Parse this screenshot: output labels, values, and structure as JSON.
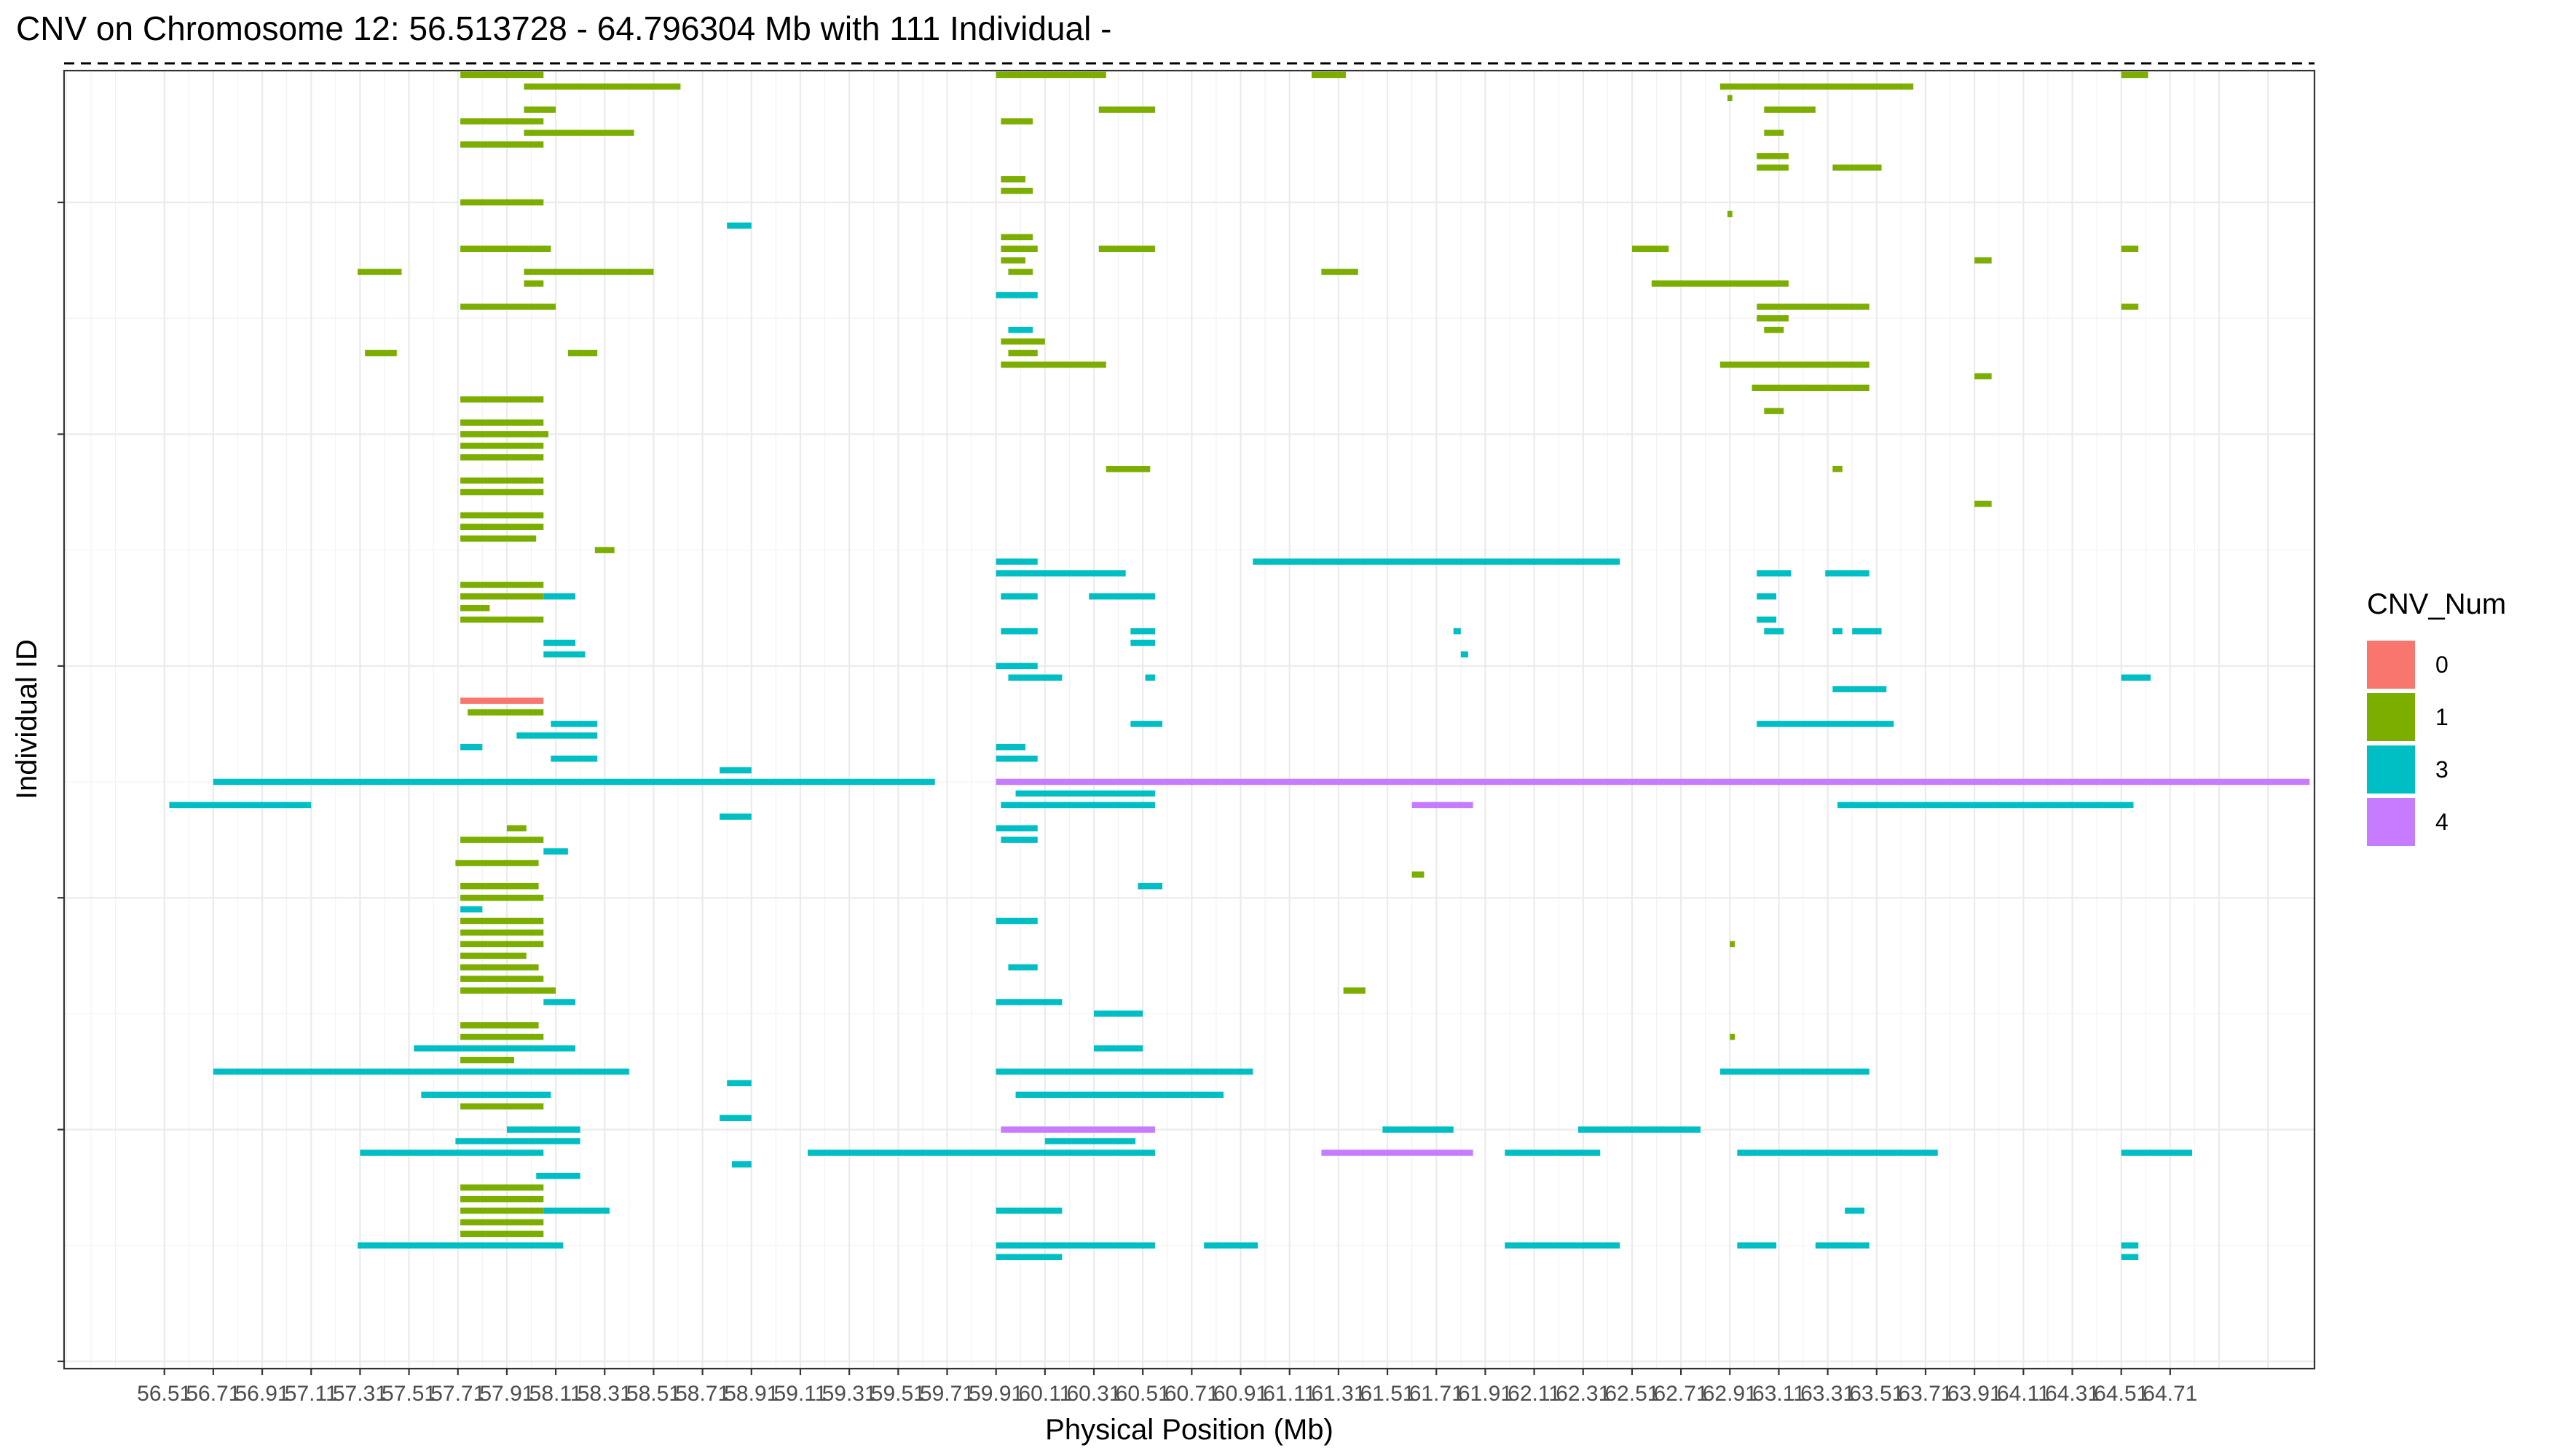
{
  "chart_data": {
    "type": "segment",
    "title": "CNV on Chromosome 12: 56.513728 - 64.796304 Mb with 111 Individual -",
    "xlabel": "Physical Position (Mb)",
    "ylabel": "Individual ID",
    "x_tick_labels": [
      "56.51",
      "56.71",
      "56.91",
      "57.11",
      "57.31",
      "57.51",
      "57.71",
      "57.91",
      "58.11",
      "58.31",
      "58.51",
      "58.71",
      "58.91",
      "59.11",
      "59.31",
      "59.51",
      "59.71",
      "59.91",
      "60.11",
      "60.31",
      "60.51",
      "60.71",
      "60.91",
      "61.11",
      "61.31",
      "61.51",
      "61.71",
      "61.91",
      "62.11",
      "62.31",
      "62.51",
      "62.71",
      "62.91",
      "63.11",
      "63.31",
      "63.51",
      "63.71",
      "63.91",
      "64.11",
      "64.31",
      "64.51",
      "64.71"
    ],
    "xlim": [
      56.1,
      65.3
    ],
    "ylim": [
      0,
      112
    ],
    "y_minor_ticks": [
      0,
      20,
      40,
      60,
      80,
      100
    ],
    "reference_line_y": 112,
    "grid": true,
    "legend": {
      "title": "CNV_Num",
      "position": "right",
      "entries": [
        {
          "label": "0",
          "color": "#F8766D"
        },
        {
          "label": "1",
          "color": "#7CAE00"
        },
        {
          "label": "3",
          "color": "#00BFC4"
        },
        {
          "label": "4",
          "color": "#C77CFF"
        }
      ]
    },
    "segments": [
      {
        "row": 111,
        "x0": 57.72,
        "x1": 58.06,
        "cnv": 1
      },
      {
        "row": 111,
        "x0": 59.91,
        "x1": 60.36,
        "cnv": 1
      },
      {
        "row": 111,
        "x0": 61.2,
        "x1": 61.34,
        "cnv": 1
      },
      {
        "row": 111,
        "x0": 64.51,
        "x1": 64.62,
        "cnv": 1
      },
      {
        "row": 110,
        "x0": 57.98,
        "x1": 58.62,
        "cnv": 1
      },
      {
        "row": 110,
        "x0": 62.87,
        "x1": 63.66,
        "cnv": 1
      },
      {
        "row": 109,
        "x0": 62.9,
        "x1": 62.92,
        "cnv": 1
      },
      {
        "row": 108,
        "x0": 57.98,
        "x1": 58.11,
        "cnv": 1
      },
      {
        "row": 108,
        "x0": 60.33,
        "x1": 60.56,
        "cnv": 1
      },
      {
        "row": 108,
        "x0": 63.05,
        "x1": 63.26,
        "cnv": 1
      },
      {
        "row": 107,
        "x0": 57.72,
        "x1": 58.06,
        "cnv": 1
      },
      {
        "row": 107,
        "x0": 59.93,
        "x1": 60.06,
        "cnv": 1
      },
      {
        "row": 106,
        "x0": 57.98,
        "x1": 58.43,
        "cnv": 1
      },
      {
        "row": 106,
        "x0": 63.05,
        "x1": 63.13,
        "cnv": 1
      },
      {
        "row": 105,
        "x0": 57.72,
        "x1": 58.06,
        "cnv": 1
      },
      {
        "row": 104,
        "x0": 63.02,
        "x1": 63.15,
        "cnv": 1
      },
      {
        "row": 103,
        "x0": 63.02,
        "x1": 63.15,
        "cnv": 1
      },
      {
        "row": 103,
        "x0": 63.33,
        "x1": 63.53,
        "cnv": 1
      },
      {
        "row": 102,
        "x0": 59.93,
        "x1": 60.03,
        "cnv": 1
      },
      {
        "row": 101,
        "x0": 59.93,
        "x1": 60.06,
        "cnv": 1
      },
      {
        "row": 100,
        "x0": 57.72,
        "x1": 58.06,
        "cnv": 1
      },
      {
        "row": 99,
        "x0": 62.9,
        "x1": 62.92,
        "cnv": 1
      },
      {
        "row": 98,
        "x0": 58.81,
        "x1": 58.91,
        "cnv": 3
      },
      {
        "row": 97,
        "x0": 59.93,
        "x1": 60.06,
        "cnv": 1
      },
      {
        "row": 96,
        "x0": 57.72,
        "x1": 58.09,
        "cnv": 1
      },
      {
        "row": 96,
        "x0": 59.93,
        "x1": 60.08,
        "cnv": 1
      },
      {
        "row": 96,
        "x0": 60.33,
        "x1": 60.56,
        "cnv": 1
      },
      {
        "row": 96,
        "x0": 62.51,
        "x1": 62.66,
        "cnv": 1
      },
      {
        "row": 96,
        "x0": 64.51,
        "x1": 64.58,
        "cnv": 1
      },
      {
        "row": 95,
        "x0": 59.93,
        "x1": 60.03,
        "cnv": 1
      },
      {
        "row": 95,
        "x0": 63.91,
        "x1": 63.98,
        "cnv": 1
      },
      {
        "row": 94,
        "x0": 57.3,
        "x1": 57.48,
        "cnv": 1
      },
      {
        "row": 94,
        "x0": 57.98,
        "x1": 58.51,
        "cnv": 1
      },
      {
        "row": 94,
        "x0": 59.96,
        "x1": 60.06,
        "cnv": 1
      },
      {
        "row": 94,
        "x0": 61.24,
        "x1": 61.39,
        "cnv": 1
      },
      {
        "row": 93,
        "x0": 57.98,
        "x1": 58.06,
        "cnv": 1
      },
      {
        "row": 93,
        "x0": 62.59,
        "x1": 63.15,
        "cnv": 1
      },
      {
        "row": 92,
        "x0": 59.91,
        "x1": 60.08,
        "cnv": 3
      },
      {
        "row": 91,
        "x0": 57.72,
        "x1": 58.11,
        "cnv": 1
      },
      {
        "row": 91,
        "x0": 63.02,
        "x1": 63.48,
        "cnv": 1
      },
      {
        "row": 91,
        "x0": 64.51,
        "x1": 64.58,
        "cnv": 1
      },
      {
        "row": 90,
        "x0": 63.02,
        "x1": 63.15,
        "cnv": 1
      },
      {
        "row": 89,
        "x0": 59.96,
        "x1": 60.06,
        "cnv": 3
      },
      {
        "row": 89,
        "x0": 63.05,
        "x1": 63.13,
        "cnv": 1
      },
      {
        "row": 88,
        "x0": 59.93,
        "x1": 60.11,
        "cnv": 1
      },
      {
        "row": 87,
        "x0": 57.33,
        "x1": 57.46,
        "cnv": 1
      },
      {
        "row": 87,
        "x0": 58.16,
        "x1": 58.28,
        "cnv": 1
      },
      {
        "row": 87,
        "x0": 59.96,
        "x1": 60.08,
        "cnv": 1
      },
      {
        "row": 86,
        "x0": 59.93,
        "x1": 60.36,
        "cnv": 1
      },
      {
        "row": 86,
        "x0": 62.87,
        "x1": 63.48,
        "cnv": 1
      },
      {
        "row": 85,
        "x0": 63.91,
        "x1": 63.98,
        "cnv": 1
      },
      {
        "row": 84,
        "x0": 63.0,
        "x1": 63.48,
        "cnv": 1
      },
      {
        "row": 83,
        "x0": 57.72,
        "x1": 58.06,
        "cnv": 1
      },
      {
        "row": 82,
        "x0": 63.05,
        "x1": 63.13,
        "cnv": 1
      },
      {
        "row": 81,
        "x0": 57.72,
        "x1": 58.06,
        "cnv": 1
      },
      {
        "row": 80,
        "x0": 57.72,
        "x1": 58.08,
        "cnv": 1
      },
      {
        "row": 79,
        "x0": 57.72,
        "x1": 58.06,
        "cnv": 1
      },
      {
        "row": 78,
        "x0": 57.72,
        "x1": 58.06,
        "cnv": 1
      },
      {
        "row": 77,
        "x0": 60.36,
        "x1": 60.54,
        "cnv": 1
      },
      {
        "row": 77,
        "x0": 63.33,
        "x1": 63.37,
        "cnv": 1
      },
      {
        "row": 76,
        "x0": 57.72,
        "x1": 58.06,
        "cnv": 1
      },
      {
        "row": 75,
        "x0": 57.72,
        "x1": 58.06,
        "cnv": 1
      },
      {
        "row": 74,
        "x0": 63.91,
        "x1": 63.98,
        "cnv": 1
      },
      {
        "row": 73,
        "x0": 57.72,
        "x1": 58.06,
        "cnv": 1
      },
      {
        "row": 72,
        "x0": 57.72,
        "x1": 58.06,
        "cnv": 1
      },
      {
        "row": 71,
        "x0": 57.72,
        "x1": 58.03,
        "cnv": 1
      },
      {
        "row": 70,
        "x0": 58.27,
        "x1": 58.35,
        "cnv": 1
      },
      {
        "row": 69,
        "x0": 59.91,
        "x1": 60.08,
        "cnv": 3
      },
      {
        "row": 69,
        "x0": 60.96,
        "x1": 62.46,
        "cnv": 3
      },
      {
        "row": 68,
        "x0": 59.91,
        "x1": 60.44,
        "cnv": 3
      },
      {
        "row": 68,
        "x0": 63.02,
        "x1": 63.16,
        "cnv": 3
      },
      {
        "row": 68,
        "x0": 63.3,
        "x1": 63.48,
        "cnv": 3
      },
      {
        "row": 67,
        "x0": 57.72,
        "x1": 58.06,
        "cnv": 1
      },
      {
        "row": 66,
        "x0": 57.72,
        "x1": 58.06,
        "cnv": 1
      },
      {
        "row": 66,
        "x0": 58.06,
        "x1": 58.19,
        "cnv": 3
      },
      {
        "row": 66,
        "x0": 59.93,
        "x1": 60.08,
        "cnv": 3
      },
      {
        "row": 66,
        "x0": 60.29,
        "x1": 60.56,
        "cnv": 3
      },
      {
        "row": 66,
        "x0": 63.02,
        "x1": 63.1,
        "cnv": 3
      },
      {
        "row": 65,
        "x0": 57.72,
        "x1": 57.84,
        "cnv": 1
      },
      {
        "row": 64,
        "x0": 57.72,
        "x1": 58.06,
        "cnv": 1
      },
      {
        "row": 64,
        "x0": 63.02,
        "x1": 63.1,
        "cnv": 3
      },
      {
        "row": 63,
        "x0": 59.93,
        "x1": 60.08,
        "cnv": 3
      },
      {
        "row": 63,
        "x0": 60.46,
        "x1": 60.56,
        "cnv": 3
      },
      {
        "row": 63,
        "x0": 61.78,
        "x1": 61.81,
        "cnv": 3
      },
      {
        "row": 63,
        "x0": 63.05,
        "x1": 63.13,
        "cnv": 3
      },
      {
        "row": 63,
        "x0": 63.33,
        "x1": 63.37,
        "cnv": 3
      },
      {
        "row": 63,
        "x0": 63.41,
        "x1": 63.53,
        "cnv": 3
      },
      {
        "row": 62,
        "x0": 58.06,
        "x1": 58.19,
        "cnv": 3
      },
      {
        "row": 62,
        "x0": 60.46,
        "x1": 60.56,
        "cnv": 3
      },
      {
        "row": 61,
        "x0": 58.06,
        "x1": 58.23,
        "cnv": 3
      },
      {
        "row": 61,
        "x0": 61.81,
        "x1": 61.84,
        "cnv": 3
      },
      {
        "row": 60,
        "x0": 59.91,
        "x1": 60.08,
        "cnv": 3
      },
      {
        "row": 59,
        "x0": 59.96,
        "x1": 60.18,
        "cnv": 3
      },
      {
        "row": 59,
        "x0": 60.52,
        "x1": 60.56,
        "cnv": 3
      },
      {
        "row": 59,
        "x0": 64.51,
        "x1": 64.63,
        "cnv": 3
      },
      {
        "row": 58,
        "x0": 63.33,
        "x1": 63.55,
        "cnv": 3
      },
      {
        "row": 57,
        "x0": 57.72,
        "x1": 58.06,
        "cnv": 0
      },
      {
        "row": 56,
        "x0": 57.75,
        "x1": 58.06,
        "cnv": 1
      },
      {
        "row": 55,
        "x0": 58.09,
        "x1": 58.28,
        "cnv": 3
      },
      {
        "row": 55,
        "x0": 60.46,
        "x1": 60.59,
        "cnv": 3
      },
      {
        "row": 55,
        "x0": 63.02,
        "x1": 63.58,
        "cnv": 3
      },
      {
        "row": 54,
        "x0": 57.95,
        "x1": 58.28,
        "cnv": 3
      },
      {
        "row": 53,
        "x0": 57.72,
        "x1": 57.81,
        "cnv": 3
      },
      {
        "row": 53,
        "x0": 59.91,
        "x1": 60.03,
        "cnv": 3
      },
      {
        "row": 52,
        "x0": 58.09,
        "x1": 58.28,
        "cnv": 3
      },
      {
        "row": 52,
        "x0": 59.91,
        "x1": 60.08,
        "cnv": 3
      },
      {
        "row": 51,
        "x0": 58.78,
        "x1": 58.91,
        "cnv": 3
      },
      {
        "row": 50,
        "x0": 56.71,
        "x1": 59.66,
        "cnv": 3
      },
      {
        "row": 50,
        "x0": 59.91,
        "x1": 65.28,
        "cnv": 4
      },
      {
        "row": 49,
        "x0": 59.99,
        "x1": 60.56,
        "cnv": 3
      },
      {
        "row": 48,
        "x0": 56.53,
        "x1": 57.11,
        "cnv": 3
      },
      {
        "row": 48,
        "x0": 59.93,
        "x1": 60.56,
        "cnv": 3
      },
      {
        "row": 48,
        "x0": 61.61,
        "x1": 61.86,
        "cnv": 4
      },
      {
        "row": 48,
        "x0": 63.35,
        "x1": 64.56,
        "cnv": 3
      },
      {
        "row": 47,
        "x0": 58.78,
        "x1": 58.91,
        "cnv": 3
      },
      {
        "row": 46,
        "x0": 57.91,
        "x1": 57.99,
        "cnv": 1
      },
      {
        "row": 46,
        "x0": 59.91,
        "x1": 60.08,
        "cnv": 3
      },
      {
        "row": 45,
        "x0": 57.72,
        "x1": 58.06,
        "cnv": 1
      },
      {
        "row": 45,
        "x0": 59.93,
        "x1": 60.08,
        "cnv": 3
      },
      {
        "row": 44,
        "x0": 58.06,
        "x1": 58.16,
        "cnv": 3
      },
      {
        "row": 43,
        "x0": 57.7,
        "x1": 58.04,
        "cnv": 1
      },
      {
        "row": 42,
        "x0": 61.61,
        "x1": 61.66,
        "cnv": 1
      },
      {
        "row": 41,
        "x0": 57.72,
        "x1": 58.04,
        "cnv": 1
      },
      {
        "row": 41,
        "x0": 60.49,
        "x1": 60.59,
        "cnv": 3
      },
      {
        "row": 40,
        "x0": 57.72,
        "x1": 58.06,
        "cnv": 1
      },
      {
        "row": 39,
        "x0": 57.72,
        "x1": 57.81,
        "cnv": 3
      },
      {
        "row": 38,
        "x0": 57.72,
        "x1": 58.06,
        "cnv": 1
      },
      {
        "row": 38,
        "x0": 59.91,
        "x1": 60.08,
        "cnv": 3
      },
      {
        "row": 37,
        "x0": 57.72,
        "x1": 58.06,
        "cnv": 1
      },
      {
        "row": 36,
        "x0": 57.72,
        "x1": 58.06,
        "cnv": 1
      },
      {
        "row": 36,
        "x0": 62.91,
        "x1": 62.93,
        "cnv": 1
      },
      {
        "row": 35,
        "x0": 57.72,
        "x1": 57.99,
        "cnv": 1
      },
      {
        "row": 34,
        "x0": 57.72,
        "x1": 58.04,
        "cnv": 1
      },
      {
        "row": 34,
        "x0": 59.96,
        "x1": 60.08,
        "cnv": 3
      },
      {
        "row": 33,
        "x0": 57.72,
        "x1": 58.06,
        "cnv": 1
      },
      {
        "row": 32,
        "x0": 57.72,
        "x1": 58.11,
        "cnv": 1
      },
      {
        "row": 32,
        "x0": 61.33,
        "x1": 61.42,
        "cnv": 1
      },
      {
        "row": 31,
        "x0": 58.06,
        "x1": 58.19,
        "cnv": 3
      },
      {
        "row": 31,
        "x0": 59.91,
        "x1": 60.18,
        "cnv": 3
      },
      {
        "row": 30,
        "x0": 60.31,
        "x1": 60.51,
        "cnv": 3
      },
      {
        "row": 29,
        "x0": 57.72,
        "x1": 58.04,
        "cnv": 1
      },
      {
        "row": 28,
        "x0": 57.72,
        "x1": 58.06,
        "cnv": 1
      },
      {
        "row": 28,
        "x0": 62.91,
        "x1": 62.93,
        "cnv": 1
      },
      {
        "row": 27,
        "x0": 57.53,
        "x1": 58.19,
        "cnv": 3
      },
      {
        "row": 27,
        "x0": 60.31,
        "x1": 60.51,
        "cnv": 3
      },
      {
        "row": 26,
        "x0": 57.72,
        "x1": 57.94,
        "cnv": 1
      },
      {
        "row": 25,
        "x0": 56.71,
        "x1": 58.41,
        "cnv": 3
      },
      {
        "row": 25,
        "x0": 59.91,
        "x1": 60.96,
        "cnv": 3
      },
      {
        "row": 25,
        "x0": 62.87,
        "x1": 63.48,
        "cnv": 3
      },
      {
        "row": 24,
        "x0": 58.81,
        "x1": 58.91,
        "cnv": 3
      },
      {
        "row": 23,
        "x0": 57.56,
        "x1": 58.09,
        "cnv": 3
      },
      {
        "row": 23,
        "x0": 59.99,
        "x1": 60.84,
        "cnv": 3
      },
      {
        "row": 22,
        "x0": 57.72,
        "x1": 58.06,
        "cnv": 1
      },
      {
        "row": 21,
        "x0": 58.78,
        "x1": 58.91,
        "cnv": 3
      },
      {
        "row": 20,
        "x0": 57.91,
        "x1": 58.21,
        "cnv": 3
      },
      {
        "row": 20,
        "x0": 59.93,
        "x1": 60.56,
        "cnv": 4
      },
      {
        "row": 20,
        "x0": 61.49,
        "x1": 61.78,
        "cnv": 3
      },
      {
        "row": 20,
        "x0": 62.29,
        "x1": 62.79,
        "cnv": 3
      },
      {
        "row": 19,
        "x0": 57.7,
        "x1": 58.21,
        "cnv": 3
      },
      {
        "row": 19,
        "x0": 60.11,
        "x1": 60.48,
        "cnv": 3
      },
      {
        "row": 18,
        "x0": 57.31,
        "x1": 58.06,
        "cnv": 3
      },
      {
        "row": 18,
        "x0": 59.14,
        "x1": 60.56,
        "cnv": 3
      },
      {
        "row": 18,
        "x0": 61.24,
        "x1": 61.86,
        "cnv": 4
      },
      {
        "row": 18,
        "x0": 61.99,
        "x1": 62.38,
        "cnv": 3
      },
      {
        "row": 18,
        "x0": 62.94,
        "x1": 63.76,
        "cnv": 3
      },
      {
        "row": 18,
        "x0": 64.51,
        "x1": 64.8,
        "cnv": 3
      },
      {
        "row": 17,
        "x0": 58.83,
        "x1": 58.91,
        "cnv": 3
      },
      {
        "row": 16,
        "x0": 58.03,
        "x1": 58.21,
        "cnv": 3
      },
      {
        "row": 15,
        "x0": 57.72,
        "x1": 58.06,
        "cnv": 1
      },
      {
        "row": 14,
        "x0": 57.72,
        "x1": 58.06,
        "cnv": 1
      },
      {
        "row": 13,
        "x0": 57.72,
        "x1": 58.06,
        "cnv": 1
      },
      {
        "row": 13,
        "x0": 58.06,
        "x1": 58.33,
        "cnv": 3
      },
      {
        "row": 13,
        "x0": 59.91,
        "x1": 60.18,
        "cnv": 3
      },
      {
        "row": 13,
        "x0": 63.38,
        "x1": 63.46,
        "cnv": 3
      },
      {
        "row": 12,
        "x0": 57.72,
        "x1": 58.06,
        "cnv": 1
      },
      {
        "row": 11,
        "x0": 57.72,
        "x1": 58.06,
        "cnv": 1
      },
      {
        "row": 10,
        "x0": 57.3,
        "x1": 58.14,
        "cnv": 3
      },
      {
        "row": 10,
        "x0": 59.91,
        "x1": 60.56,
        "cnv": 3
      },
      {
        "row": 10,
        "x0": 60.76,
        "x1": 60.98,
        "cnv": 3
      },
      {
        "row": 10,
        "x0": 61.99,
        "x1": 62.46,
        "cnv": 3
      },
      {
        "row": 10,
        "x0": 62.94,
        "x1": 63.1,
        "cnv": 3
      },
      {
        "row": 10,
        "x0": 63.26,
        "x1": 63.48,
        "cnv": 3
      },
      {
        "row": 10,
        "x0": 64.51,
        "x1": 64.58,
        "cnv": 3
      },
      {
        "row": 9,
        "x0": 59.91,
        "x1": 60.18,
        "cnv": 3
      },
      {
        "row": 9,
        "x0": 64.51,
        "x1": 64.58,
        "cnv": 3
      }
    ]
  }
}
